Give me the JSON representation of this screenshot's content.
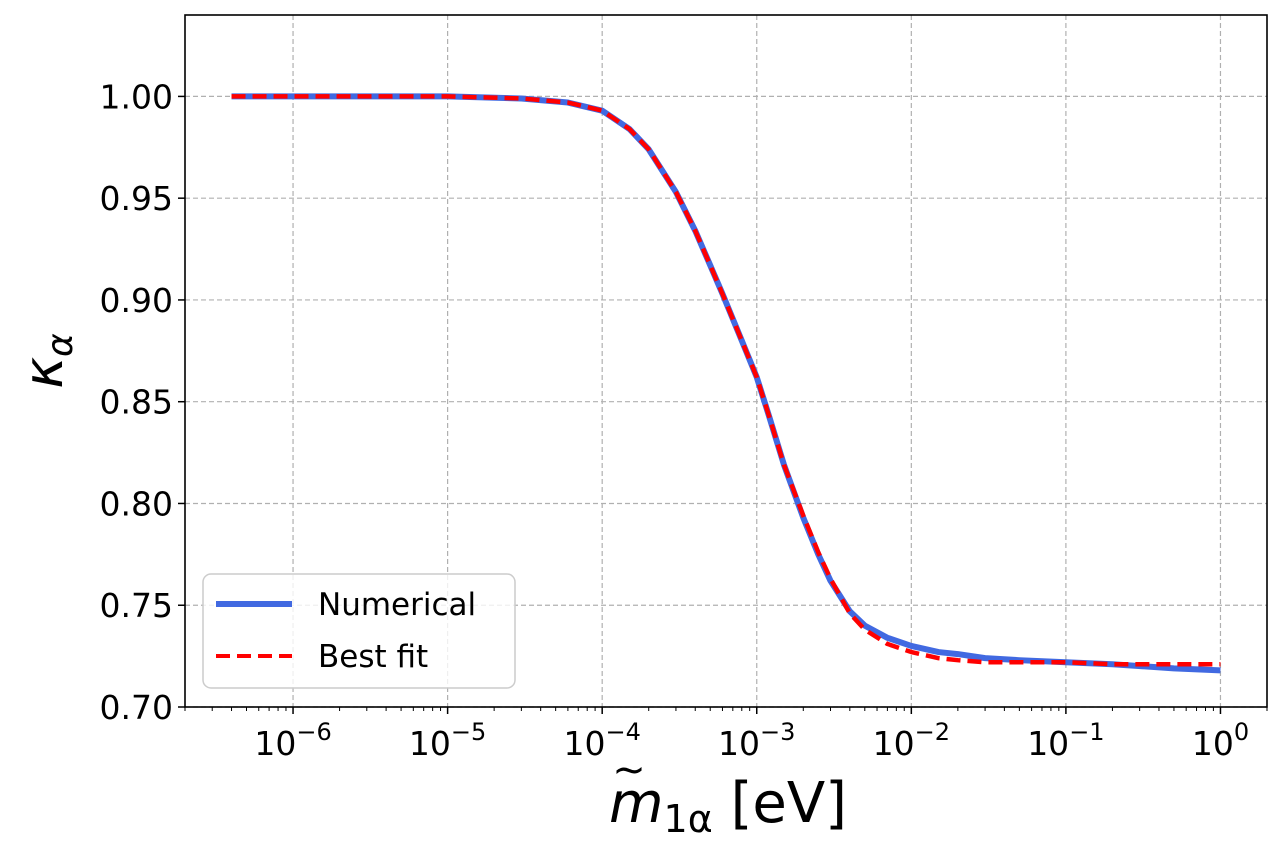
{
  "chart_data": {
    "type": "line",
    "xscale": "log",
    "xlim": [
      2e-07,
      2
    ],
    "ylim": [
      0.7,
      1.04
    ],
    "grid": true,
    "legend_position": "lower-left",
    "xlabel": {
      "main": "m",
      "tilde": "~",
      "sub": "1α",
      "unit": " [eV]"
    },
    "ylabel": {
      "main": "κ",
      "sub": "α"
    },
    "x_ticks": [
      {
        "value": 1e-06,
        "base": "10",
        "exp": "−6"
      },
      {
        "value": 1e-05,
        "base": "10",
        "exp": "−5"
      },
      {
        "value": 0.0001,
        "base": "10",
        "exp": "−4"
      },
      {
        "value": 0.001,
        "base": "10",
        "exp": "−3"
      },
      {
        "value": 0.01,
        "base": "10",
        "exp": "−2"
      },
      {
        "value": 0.1,
        "base": "10",
        "exp": "−1"
      },
      {
        "value": 1,
        "base": "10",
        "exp": "0"
      }
    ],
    "y_ticks": [
      {
        "value": 0.7,
        "label": "0.70"
      },
      {
        "value": 0.75,
        "label": "0.75"
      },
      {
        "value": 0.8,
        "label": "0.80"
      },
      {
        "value": 0.85,
        "label": "0.85"
      },
      {
        "value": 0.9,
        "label": "0.90"
      },
      {
        "value": 0.95,
        "label": "0.95"
      },
      {
        "value": 1.0,
        "label": "1.00"
      }
    ],
    "series": [
      {
        "name": "Numerical",
        "color": "#4169e1",
        "style": "solid",
        "x": [
          4e-07,
          1e-06,
          3e-06,
          1e-05,
          3e-05,
          6e-05,
          0.0001,
          0.00015,
          0.0002,
          0.0003,
          0.0004,
          0.0005,
          0.0006,
          0.0008,
          0.001,
          0.0012,
          0.0015,
          0.002,
          0.0025,
          0.003,
          0.004,
          0.005,
          0.007,
          0.01,
          0.015,
          0.02,
          0.03,
          0.05,
          0.1,
          0.2,
          0.5,
          1
        ],
        "y": [
          1.0,
          1.0,
          1.0,
          1.0,
          0.999,
          0.997,
          0.993,
          0.984,
          0.974,
          0.953,
          0.934,
          0.917,
          0.903,
          0.88,
          0.862,
          0.843,
          0.819,
          0.793,
          0.775,
          0.762,
          0.747,
          0.74,
          0.734,
          0.73,
          0.727,
          0.726,
          0.724,
          0.723,
          0.722,
          0.721,
          0.719,
          0.718
        ]
      },
      {
        "name": "Best fit",
        "color": "#ff0000",
        "style": "dashed",
        "x": [
          4e-07,
          1e-06,
          3e-06,
          1e-05,
          3e-05,
          6e-05,
          0.0001,
          0.00015,
          0.0002,
          0.0003,
          0.0004,
          0.0005,
          0.0006,
          0.0008,
          0.001,
          0.0012,
          0.0015,
          0.002,
          0.0025,
          0.003,
          0.004,
          0.005,
          0.007,
          0.01,
          0.015,
          0.02,
          0.03,
          0.05,
          0.1,
          0.2,
          0.5,
          1
        ],
        "y": [
          1.0,
          1.0,
          1.0,
          1.0,
          0.999,
          0.997,
          0.993,
          0.984,
          0.974,
          0.953,
          0.934,
          0.917,
          0.903,
          0.88,
          0.862,
          0.843,
          0.819,
          0.794,
          0.776,
          0.763,
          0.746,
          0.738,
          0.731,
          0.727,
          0.724,
          0.723,
          0.722,
          0.722,
          0.722,
          0.721,
          0.721,
          0.721
        ]
      }
    ]
  }
}
